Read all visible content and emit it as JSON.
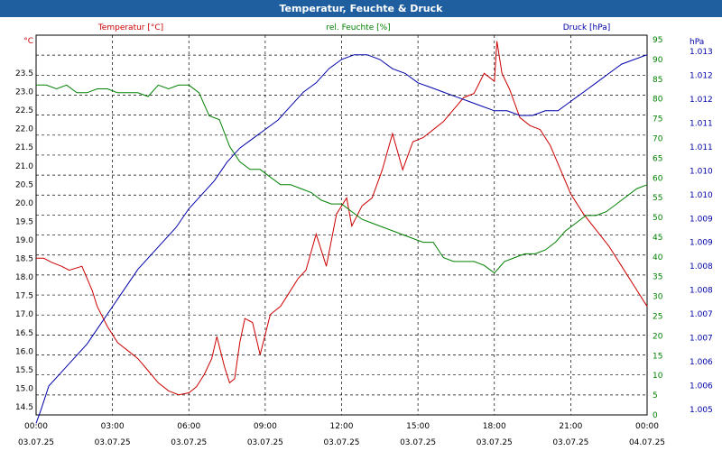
{
  "title": "Temperatur, Feuchte & Druck",
  "colors": {
    "temperature": "#cc0000",
    "humidity": "#008000",
    "pressure": "#0000aa",
    "titlebar": "#1f5fa0"
  },
  "chart_data": {
    "type": "line",
    "grid": true,
    "x_ticks": [
      {
        "time": "00:00",
        "date": "03.07.25"
      },
      {
        "time": "03:00",
        "date": "03.07.25"
      },
      {
        "time": "06:00",
        "date": "03.07.25"
      },
      {
        "time": "09:00",
        "date": "03.07.25"
      },
      {
        "time": "12:00",
        "date": "03.07.25"
      },
      {
        "time": "15:00",
        "date": "03.07.25"
      },
      {
        "time": "18:00",
        "date": "03.07.25"
      },
      {
        "time": "21:00",
        "date": "03.07.25"
      },
      {
        "time": "00:00",
        "date": "04.07.25"
      }
    ],
    "x_range_hours": [
      0,
      24
    ],
    "axes": {
      "temperature": {
        "label": "Temperatur [°C]",
        "unit": "°C",
        "range": [
          14.5,
          23.5
        ],
        "ticks": [
          "14.5",
          "15.0",
          "15.5",
          "16.0",
          "16.5",
          "17.0",
          "17.5",
          "18.0",
          "18.5",
          "19.0",
          "19.5",
          "20.0",
          "20.5",
          "21.0",
          "21.5",
          "22.0",
          "22.5",
          "23.0",
          "23.5"
        ]
      },
      "humidity": {
        "label": "rel. Feuchte [%]",
        "unit": "%",
        "range": [
          0,
          95
        ],
        "ticks": [
          "0",
          "5",
          "10",
          "15",
          "20",
          "25",
          "30",
          "35",
          "40",
          "45",
          "50",
          "55",
          "60",
          "65",
          "70",
          "75",
          "80",
          "85",
          "90",
          "95"
        ]
      },
      "pressure": {
        "label": "Druck [hPa]",
        "unit": "hPa",
        "range": [
          1.005,
          1.013
        ],
        "ticks": [
          "1.005",
          "1.006",
          "1.006",
          "1.007",
          "1.007",
          "1.008",
          "1.008",
          "1.009",
          "1.009",
          "1.010",
          "1.010",
          "1.011",
          "1.011",
          "1.012",
          "1.012",
          "1.013"
        ]
      }
    },
    "series": [
      {
        "name": "Temperatur [°C]",
        "axis": "temperature",
        "x": [
          0,
          0.3,
          0.6,
          1.0,
          1.3,
          1.8,
          2.2,
          2.4,
          2.8,
          3.2,
          3.6,
          4.0,
          4.4,
          4.8,
          5.2,
          5.6,
          6.0,
          6.3,
          6.6,
          6.9,
          7.1,
          7.4,
          7.6,
          7.8,
          8.0,
          8.2,
          8.5,
          8.8,
          9.0,
          9.2,
          9.6,
          9.9,
          10.3,
          10.6,
          11.0,
          11.4,
          11.8,
          12.2,
          12.4,
          12.8,
          13.2,
          13.6,
          14.0,
          14.4,
          14.8,
          15.2,
          15.6,
          16.0,
          16.4,
          16.8,
          17.2,
          17.6,
          18.0,
          18.1,
          18.3,
          18.6,
          19.0,
          19.4,
          19.8,
          20.2,
          20.6,
          21.0,
          21.5,
          22.0,
          22.5,
          23.0,
          23.5,
          24.0
        ],
        "values": [
          18.2,
          18.2,
          18.1,
          18.0,
          17.9,
          18.0,
          17.4,
          17.0,
          16.5,
          16.1,
          15.9,
          15.7,
          15.4,
          15.1,
          14.9,
          14.8,
          14.85,
          15.0,
          15.3,
          15.7,
          16.25,
          15.5,
          15.1,
          15.2,
          16.1,
          16.7,
          16.6,
          15.8,
          16.3,
          16.8,
          17.0,
          17.3,
          17.7,
          17.9,
          18.8,
          18.0,
          19.3,
          19.7,
          19.0,
          19.5,
          19.7,
          20.4,
          21.3,
          20.4,
          21.1,
          21.2,
          21.4,
          21.6,
          21.9,
          22.2,
          22.3,
          22.8,
          22.6,
          23.6,
          22.8,
          22.4,
          21.7,
          21.5,
          21.4,
          21.0,
          20.4,
          19.8,
          19.3,
          18.9,
          18.5,
          18.0,
          17.5,
          17.0
        ]
      },
      {
        "name": "rel. Feuchte [%]",
        "axis": "humidity",
        "x": [
          0,
          0.4,
          0.8,
          1.2,
          1.6,
          2.0,
          2.4,
          2.8,
          3.2,
          3.6,
          4.0,
          4.4,
          4.8,
          5.2,
          5.6,
          6.0,
          6.4,
          6.8,
          7.2,
          7.6,
          8.0,
          8.4,
          8.8,
          9.2,
          9.6,
          10.0,
          10.4,
          10.8,
          11.2,
          11.6,
          12.0,
          12.4,
          12.8,
          13.2,
          13.6,
          14.0,
          14.4,
          14.8,
          15.2,
          15.6,
          16.0,
          16.4,
          16.8,
          17.2,
          17.6,
          18.0,
          18.4,
          18.8,
          19.2,
          19.6,
          20.0,
          20.4,
          20.8,
          21.2,
          21.6,
          22.0,
          22.4,
          22.8,
          23.2,
          23.6,
          24.0
        ],
        "values": [
          86,
          86,
          85,
          86,
          84,
          84,
          85,
          85,
          84,
          84,
          84,
          83,
          86,
          85,
          86,
          86,
          84,
          78,
          77,
          70,
          66,
          64,
          64,
          62,
          60,
          60,
          59,
          58,
          56,
          55,
          55,
          53,
          51,
          50,
          49,
          48,
          47,
          46,
          45,
          45,
          41,
          40,
          40,
          40,
          39,
          37,
          40,
          41,
          42,
          42,
          43,
          45,
          48,
          50,
          52,
          52,
          53,
          55,
          57,
          59,
          60
        ]
      },
      {
        "name": "Druck [hPa]",
        "axis": "pressure",
        "x": [
          0,
          0.2,
          0.5,
          1.0,
          1.5,
          2.0,
          2.5,
          3.0,
          3.5,
          4.0,
          4.5,
          5.0,
          5.5,
          6.0,
          6.5,
          7.0,
          7.5,
          8.0,
          8.5,
          9.0,
          9.5,
          10.0,
          10.5,
          11.0,
          11.5,
          12.0,
          12.5,
          13.0,
          13.5,
          14.0,
          14.5,
          15.0,
          15.5,
          16.0,
          16.5,
          17.0,
          17.5,
          18.0,
          18.5,
          19.0,
          19.5,
          20.0,
          20.5,
          21.0,
          21.5,
          22.0,
          22.5,
          23.0,
          23.5,
          24.0
        ],
        "values": [
          1.0045,
          1.0048,
          1.0053,
          1.0056,
          1.0059,
          1.0062,
          1.0066,
          1.007,
          1.0074,
          1.0078,
          1.0081,
          1.0084,
          1.0087,
          1.0091,
          1.0094,
          1.0097,
          1.0101,
          1.0104,
          1.0106,
          1.0108,
          1.011,
          1.0113,
          1.0116,
          1.0118,
          1.0121,
          1.0123,
          1.0124,
          1.0124,
          1.0123,
          1.0121,
          1.012,
          1.0118,
          1.0117,
          1.0116,
          1.0115,
          1.0114,
          1.0113,
          1.0112,
          1.0112,
          1.0111,
          1.0111,
          1.0112,
          1.0112,
          1.0114,
          1.0116,
          1.0118,
          1.012,
          1.0122,
          1.0123,
          1.0124
        ]
      }
    ]
  }
}
